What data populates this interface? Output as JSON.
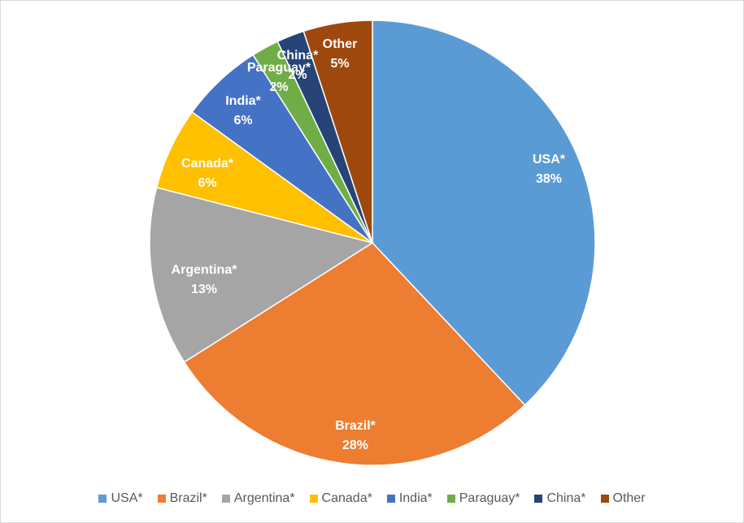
{
  "chart_data": {
    "type": "pie",
    "title": "",
    "start_angle_deg": 0,
    "direction": "clockwise",
    "slices": [
      {
        "label": "USA*",
        "value": 38,
        "value_label": "38%",
        "color": "#5B9BD5"
      },
      {
        "label": "Brazil*",
        "value": 28,
        "value_label": "28%",
        "color": "#ED7D31"
      },
      {
        "label": "Argentina*",
        "value": 13,
        "value_label": "13%",
        "color": "#A5A5A5"
      },
      {
        "label": "Canada*",
        "value": 6,
        "value_label": "6%",
        "color": "#FFC000"
      },
      {
        "label": "India*",
        "value": 6,
        "value_label": "6%",
        "color": "#4472C4"
      },
      {
        "label": "Paraguay*",
        "value": 2,
        "value_label": "2%",
        "color": "#70AD47"
      },
      {
        "label": "China*",
        "value": 2,
        "value_label": "2%",
        "color": "#264478"
      },
      {
        "label": "Other",
        "value": 5,
        "value_label": "5%",
        "color": "#9E480E"
      }
    ],
    "legend": {
      "position": "bottom"
    }
  }
}
